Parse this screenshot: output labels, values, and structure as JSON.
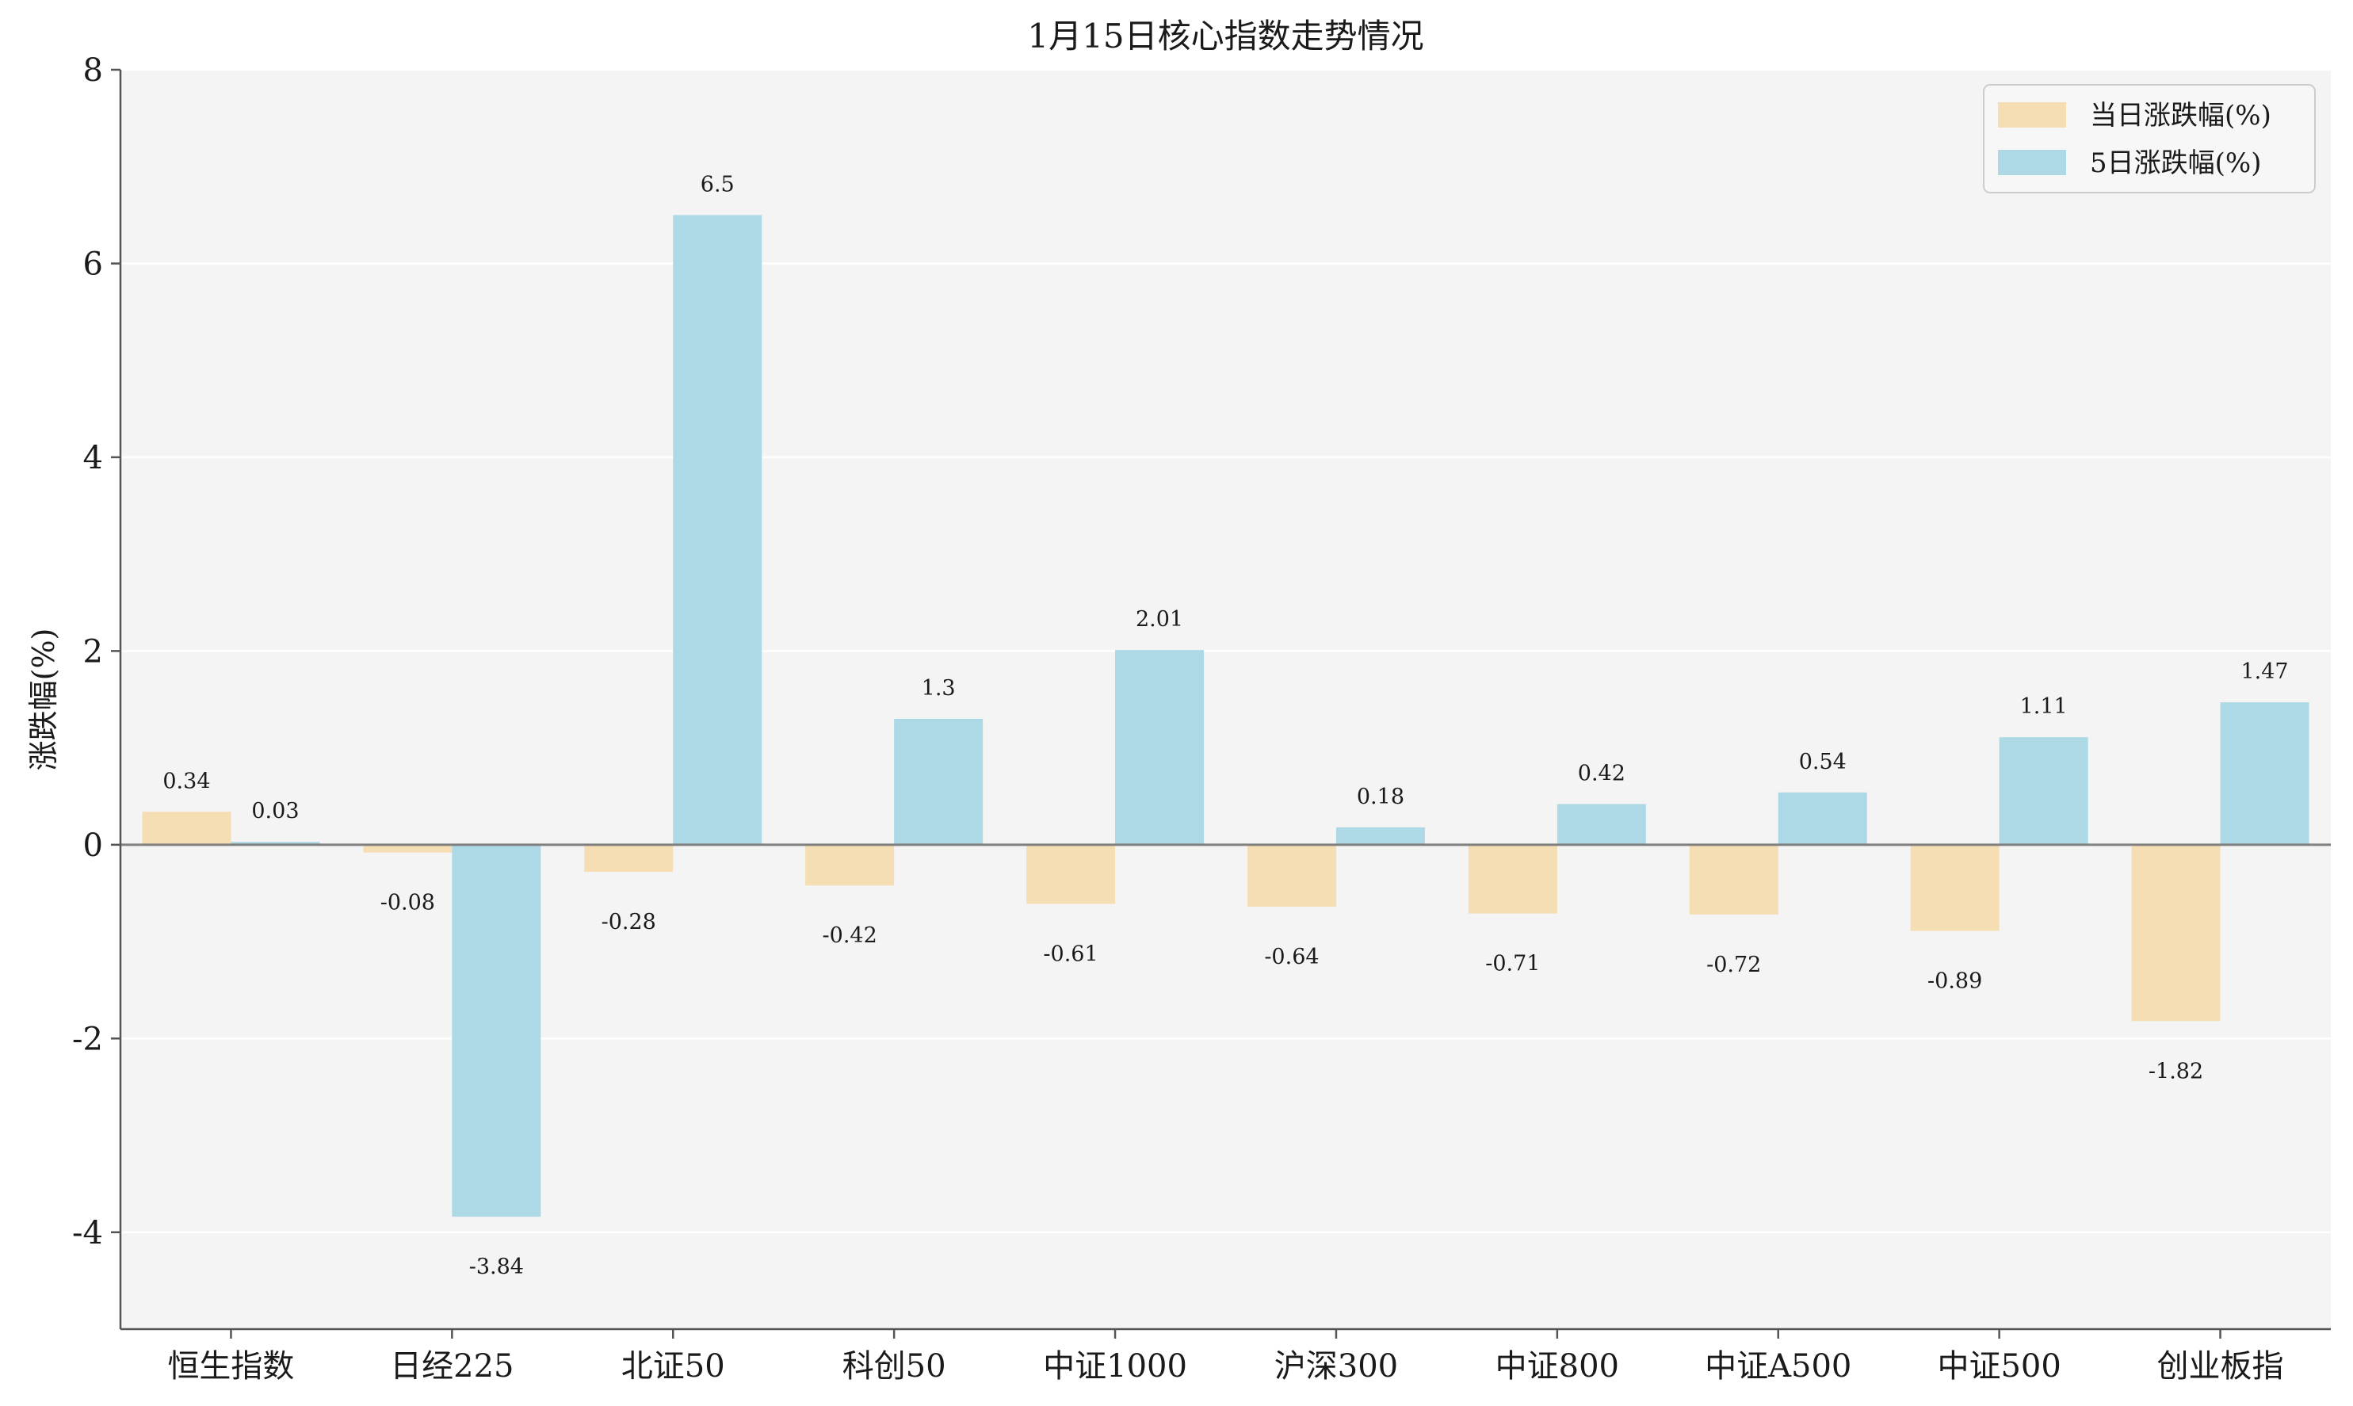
{
  "chart_data": {
    "type": "bar",
    "title": "1月15日核心指数走势情况",
    "xlabel": "",
    "ylabel": "涨跌幅(%)",
    "ylim": [
      -5,
      8
    ],
    "yticks": [
      -4,
      -2,
      0,
      2,
      4,
      6,
      8
    ],
    "grid": "horizontal",
    "legend_position": "top-right",
    "categories": [
      "恒生指数",
      "日经225",
      "北证50",
      "科创50",
      "中证1000",
      "沪深300",
      "中证800",
      "中证A500",
      "中证500",
      "创业板指"
    ],
    "series": [
      {
        "name": "当日涨跌幅(%)",
        "color": "#f5deb3",
        "values": [
          0.34,
          -0.08,
          -0.28,
          -0.42,
          -0.61,
          -0.64,
          -0.71,
          -0.72,
          -0.89,
          -1.82
        ],
        "labels": [
          "0.34",
          "-0.08",
          "-0.28",
          "-0.42",
          "-0.61",
          "-0.64",
          "-0.71",
          "-0.72",
          "-0.89",
          "-1.82"
        ]
      },
      {
        "name": "5日涨跌幅(%)",
        "color": "#add8e6",
        "values": [
          0.03,
          -3.84,
          6.5,
          1.3,
          2.01,
          0.18,
          0.42,
          0.54,
          1.11,
          1.47
        ],
        "labels": [
          "0.03",
          "-3.84",
          "6.5",
          "1.3",
          "2.01",
          "0.18",
          "0.42",
          "0.54",
          "1.11",
          "1.47"
        ]
      }
    ],
    "plot_background": "#f4f4f4",
    "axis_color": "#555555",
    "zero_line_color": "#808080"
  }
}
